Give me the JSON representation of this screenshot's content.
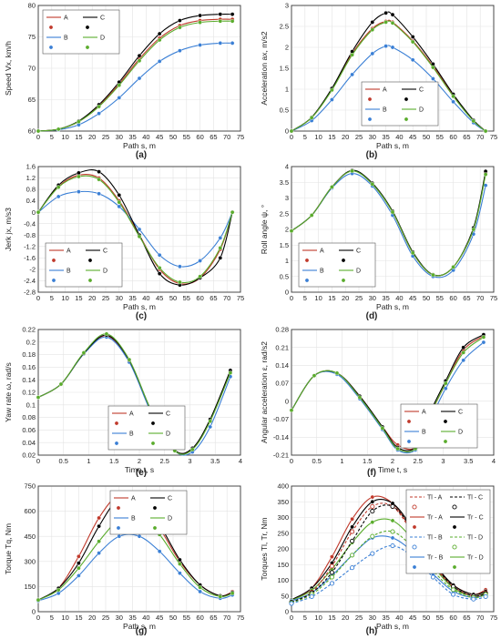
{
  "colors": {
    "A": "#c0392b",
    "B": "#3a7fd5",
    "C": "#000000",
    "D": "#5aac2c"
  },
  "chart_data": [
    {
      "type": "line",
      "caption": "(a)",
      "xlabel": "Path s, m",
      "ylabel": "Speed Vx, km/h",
      "xlim": [
        0,
        75
      ],
      "ylim": [
        60,
        80
      ],
      "grid": true,
      "legend": "top-left",
      "xticks": [
        0,
        5,
        10,
        15,
        20,
        25,
        30,
        35,
        40,
        45,
        50,
        55,
        60,
        65,
        70,
        75
      ],
      "yticks": [
        60,
        65,
        70,
        75,
        80
      ],
      "legend_entries": [
        "A",
        "C",
        "B",
        "D"
      ],
      "x": [
        0,
        7.5,
        15,
        22.5,
        30,
        37.5,
        45,
        52.5,
        60,
        67.5,
        72
      ],
      "series": [
        {
          "name": "A",
          "values": [
            60,
            60.3,
            61.5,
            64,
            67.5,
            71.5,
            74.8,
            76.8,
            77.6,
            77.8,
            77.8
          ]
        },
        {
          "name": "B",
          "values": [
            60,
            60.2,
            61,
            62.8,
            65.3,
            68.4,
            71.1,
            72.8,
            73.7,
            74.0,
            74.0
          ]
        },
        {
          "name": "C",
          "values": [
            60,
            60.3,
            61.6,
            64.2,
            67.8,
            72.0,
            75.5,
            77.6,
            78.4,
            78.6,
            78.6
          ]
        },
        {
          "name": "D",
          "values": [
            60,
            60.3,
            61.5,
            63.9,
            67.3,
            71.2,
            74.5,
            76.5,
            77.3,
            77.5,
            77.5
          ]
        }
      ]
    },
    {
      "type": "line",
      "caption": "(b)",
      "xlabel": "Path s, m",
      "ylabel": "Acceleration ax, m/s2",
      "xlim": [
        0,
        75
      ],
      "ylim": [
        0,
        3
      ],
      "grid": true,
      "legend": "bottom-center",
      "xticks": [
        0,
        5,
        10,
        15,
        20,
        25,
        30,
        35,
        40,
        45,
        50,
        55,
        60,
        65,
        70,
        75
      ],
      "yticks": [
        0,
        0.5,
        1,
        1.5,
        2,
        2.5,
        3
      ],
      "legend_entries": [
        "A",
        "C",
        "B",
        "D"
      ],
      "x": [
        0,
        7.5,
        15,
        22.5,
        30,
        35,
        37.5,
        45,
        52.5,
        60,
        67.5,
        72
      ],
      "series": [
        {
          "name": "A",
          "values": [
            0,
            0.32,
            1.0,
            1.85,
            2.45,
            2.62,
            2.6,
            2.15,
            1.55,
            0.85,
            0.25,
            0
          ]
        },
        {
          "name": "B",
          "values": [
            0,
            0.25,
            0.75,
            1.35,
            1.85,
            2.03,
            2.0,
            1.7,
            1.25,
            0.7,
            0.2,
            0
          ]
        },
        {
          "name": "C",
          "values": [
            0,
            0.33,
            1.02,
            1.9,
            2.6,
            2.82,
            2.78,
            2.25,
            1.6,
            0.88,
            0.26,
            0
          ]
        },
        {
          "name": "D",
          "values": [
            0,
            0.32,
            0.98,
            1.82,
            2.42,
            2.6,
            2.58,
            2.13,
            1.52,
            0.83,
            0.24,
            0
          ]
        }
      ]
    },
    {
      "type": "line",
      "caption": "(c)",
      "xlabel": "Path s, m",
      "ylabel": "Jerk jx, m/s3",
      "xlim": [
        0,
        75
      ],
      "ylim": [
        -2.8,
        1.6
      ],
      "grid": true,
      "legend": "bottom-left",
      "xticks": [
        0,
        5,
        10,
        15,
        20,
        25,
        30,
        35,
        40,
        45,
        50,
        55,
        60,
        65,
        70,
        75
      ],
      "yticks": [
        -2.8,
        -2.4,
        -2,
        -1.6,
        -1.2,
        -0.8,
        -0.4,
        0,
        0.4,
        0.8,
        1.2,
        1.6
      ],
      "legend_entries": [
        "A",
        "C",
        "B",
        "D"
      ],
      "x": [
        0,
        7.5,
        15,
        22.5,
        30,
        37.5,
        45,
        52.5,
        60,
        67.5,
        72
      ],
      "series": [
        {
          "name": "A",
          "values": [
            0,
            0.9,
            1.3,
            1.2,
            0.4,
            -0.8,
            -2.0,
            -2.5,
            -2.3,
            -1.3,
            0
          ]
        },
        {
          "name": "B",
          "values": [
            0,
            0.55,
            0.72,
            0.65,
            0.2,
            -0.6,
            -1.5,
            -1.9,
            -1.7,
            -0.9,
            0
          ]
        },
        {
          "name": "C",
          "values": [
            0,
            0.95,
            1.38,
            1.42,
            0.6,
            -0.8,
            -2.15,
            -2.55,
            -2.3,
            -1.6,
            0
          ]
        },
        {
          "name": "D",
          "values": [
            0,
            0.88,
            1.25,
            1.15,
            0.35,
            -0.85,
            -1.95,
            -2.45,
            -2.25,
            -1.25,
            0
          ]
        }
      ]
    },
    {
      "type": "line",
      "caption": "(d)",
      "xlabel": "Path s, m",
      "ylabel": "Roll angle ψ, °",
      "xlim": [
        0,
        75
      ],
      "ylim": [
        0,
        4
      ],
      "grid": true,
      "legend": "bottom-left",
      "xticks": [
        0,
        5,
        10,
        15,
        20,
        25,
        30,
        35,
        40,
        45,
        50,
        55,
        60,
        65,
        70,
        75
      ],
      "yticks": [
        0,
        0.5,
        1,
        1.5,
        2,
        2.5,
        3,
        3.5,
        4
      ],
      "legend_entries": [
        "A",
        "C",
        "B",
        "D"
      ],
      "x": [
        0,
        7.5,
        15,
        22.5,
        30,
        37.5,
        45,
        52.5,
        60,
        67.5,
        72
      ],
      "series": [
        {
          "name": "A",
          "values": [
            1.95,
            2.45,
            3.35,
            3.87,
            3.45,
            2.55,
            1.25,
            0.55,
            0.8,
            2.0,
            3.8
          ]
        },
        {
          "name": "B",
          "values": [
            1.95,
            2.45,
            3.32,
            3.78,
            3.38,
            2.45,
            1.15,
            0.5,
            0.7,
            1.85,
            3.4
          ]
        },
        {
          "name": "C",
          "values": [
            1.95,
            2.45,
            3.35,
            3.88,
            3.47,
            2.58,
            1.28,
            0.56,
            0.8,
            2.05,
            3.85
          ]
        },
        {
          "name": "D",
          "values": [
            1.95,
            2.45,
            3.35,
            3.86,
            3.44,
            2.55,
            1.25,
            0.55,
            0.8,
            2.0,
            3.75
          ]
        }
      ]
    },
    {
      "type": "line",
      "caption": "(e)",
      "xlabel": "Time t, s",
      "ylabel": "Yaw rate ω, rad/s",
      "xlim": [
        0,
        4
      ],
      "ylim": [
        0.02,
        0.22
      ],
      "grid": true,
      "legend": "bottom-center",
      "xticks": [
        0,
        0.5,
        1,
        1.5,
        2,
        2.5,
        3,
        3.5,
        4
      ],
      "yticks": [
        0.02,
        0.04,
        0.06,
        0.08,
        0.1,
        0.12,
        0.14,
        0.16,
        0.18,
        0.2,
        0.22
      ],
      "legend_entries": [
        "A",
        "C",
        "B",
        "D"
      ],
      "x": [
        0,
        0.45,
        0.9,
        1.35,
        1.8,
        2.25,
        2.7,
        3.05,
        3.4,
        3.8
      ],
      "series": [
        {
          "name": "A",
          "values": [
            0.112,
            0.133,
            0.182,
            0.21,
            0.17,
            0.087,
            0.028,
            0.03,
            0.075,
            0.152
          ]
        },
        {
          "name": "B",
          "values": [
            0.112,
            0.133,
            0.181,
            0.208,
            0.168,
            0.085,
            0.027,
            0.025,
            0.065,
            0.145
          ]
        },
        {
          "name": "C",
          "values": [
            0.112,
            0.133,
            0.182,
            0.211,
            0.171,
            0.088,
            0.028,
            0.031,
            0.077,
            0.155
          ]
        },
        {
          "name": "D",
          "values": [
            0.112,
            0.133,
            0.183,
            0.213,
            0.172,
            0.088,
            0.027,
            0.029,
            0.074,
            0.151
          ]
        }
      ]
    },
    {
      "type": "line",
      "caption": "(f)",
      "xlabel": "Time t, s",
      "ylabel": "Angular acceleration ε, rad/s2",
      "xlim": [
        0,
        4
      ],
      "ylim": [
        -0.21,
        0.28
      ],
      "grid": true,
      "legend": "bottom-right",
      "xticks": [
        0,
        0.5,
        1,
        1.5,
        2,
        2.5,
        3,
        3.5,
        4
      ],
      "yticks": [
        -0.21,
        -0.14,
        -0.07,
        0,
        0.07,
        0.14,
        0.21,
        0.28
      ],
      "legend_entries": [
        "A",
        "C",
        "B",
        "D"
      ],
      "x": [
        0,
        0.45,
        0.9,
        1.35,
        1.8,
        2.1,
        2.45,
        2.7,
        3.05,
        3.4,
        3.8
      ],
      "series": [
        {
          "name": "A",
          "values": [
            -0.035,
            0.1,
            0.11,
            0.02,
            -0.1,
            -0.17,
            -0.18,
            -0.07,
            0.07,
            0.2,
            0.255
          ]
        },
        {
          "name": "B",
          "values": [
            -0.035,
            0.1,
            0.105,
            0.01,
            -0.11,
            -0.19,
            -0.19,
            -0.09,
            0.05,
            0.16,
            0.23
          ]
        },
        {
          "name": "C",
          "values": [
            -0.035,
            0.1,
            0.11,
            0.02,
            -0.1,
            -0.18,
            -0.18,
            -0.06,
            0.08,
            0.21,
            0.26
          ]
        },
        {
          "name": "D",
          "values": [
            -0.035,
            0.1,
            0.11,
            0.015,
            -0.105,
            -0.185,
            -0.185,
            -0.07,
            0.07,
            0.19,
            0.25
          ]
        }
      ]
    },
    {
      "type": "line",
      "caption": "(g)",
      "xlabel": "Path s, m",
      "ylabel": "Torque Tq, Nm",
      "xlim": [
        0,
        75
      ],
      "ylim": [
        0,
        750
      ],
      "grid": true,
      "legend": "top-center",
      "xticks": [
        0,
        5,
        10,
        15,
        20,
        25,
        30,
        35,
        40,
        45,
        50,
        55,
        60,
        65,
        70,
        75
      ],
      "yticks": [
        0,
        150,
        300,
        450,
        600,
        750
      ],
      "legend_entries": [
        "A",
        "C",
        "B",
        "D"
      ],
      "x": [
        0,
        7.5,
        15,
        22.5,
        30,
        37.5,
        45,
        52.5,
        60,
        67.5,
        72
      ],
      "series": [
        {
          "name": "A",
          "values": [
            70,
            140,
            330,
            560,
            700,
            675,
            500,
            300,
            160,
            95,
            120
          ]
        },
        {
          "name": "B",
          "values": [
            65,
            110,
            215,
            350,
            450,
            450,
            360,
            230,
            120,
            80,
            100
          ]
        },
        {
          "name": "C",
          "values": [
            70,
            140,
            290,
            510,
            680,
            690,
            520,
            310,
            160,
            95,
            115
          ]
        },
        {
          "name": "D",
          "values": [
            70,
            130,
            260,
            420,
            550,
            575,
            460,
            285,
            145,
            90,
            110
          ]
        }
      ]
    },
    {
      "type": "line",
      "caption": "(h)",
      "xlabel": "Path s, m",
      "ylabel": "Torques Tl, Tr, Nm",
      "xlim": [
        0,
        75
      ],
      "ylim": [
        0,
        400
      ],
      "grid": true,
      "legend": "top-right",
      "xticks": [
        0,
        5,
        10,
        15,
        20,
        25,
        30,
        35,
        40,
        45,
        50,
        55,
        60,
        65,
        70,
        75
      ],
      "yticks": [
        0,
        50,
        100,
        150,
        200,
        250,
        300,
        350,
        400
      ],
      "legend_entries": [
        "Tl - A",
        "Tl - C",
        "Tr - A",
        "Tr - C",
        "Tl - B",
        "Tl - D",
        "Tr - B",
        "Tr - D"
      ],
      "x": [
        0,
        7.5,
        15,
        22.5,
        30,
        37.5,
        45,
        52.5,
        60,
        67.5,
        72
      ],
      "series": [
        {
          "name": "Tr - A",
          "values": [
            38,
            75,
            175,
            295,
            365,
            345,
            255,
            155,
            85,
            55,
            70
          ]
        },
        {
          "name": "Tr - C",
          "values": [
            38,
            75,
            155,
            270,
            350,
            345,
            265,
            160,
            85,
            55,
            65
          ]
        },
        {
          "name": "Tr - D",
          "values": [
            36,
            68,
            135,
            220,
            285,
            290,
            230,
            145,
            75,
            50,
            60
          ]
        },
        {
          "name": "Tr - B",
          "values": [
            34,
            60,
            115,
            180,
            235,
            235,
            190,
            120,
            65,
            45,
            55
          ]
        },
        {
          "name": "Tl - A",
          "values": [
            30,
            62,
            145,
            255,
            335,
            335,
            250,
            150,
            80,
            50,
            60
          ]
        },
        {
          "name": "Tl - C",
          "values": [
            30,
            60,
            125,
            225,
            320,
            335,
            260,
            155,
            80,
            50,
            58
          ]
        },
        {
          "name": "Tl - D",
          "values": [
            28,
            55,
            110,
            180,
            240,
            255,
            205,
            130,
            70,
            45,
            55
          ]
        },
        {
          "name": "Tl - B",
          "values": [
            26,
            48,
            90,
            140,
            185,
            210,
            175,
            110,
            55,
            40,
            48
          ]
        }
      ]
    }
  ]
}
